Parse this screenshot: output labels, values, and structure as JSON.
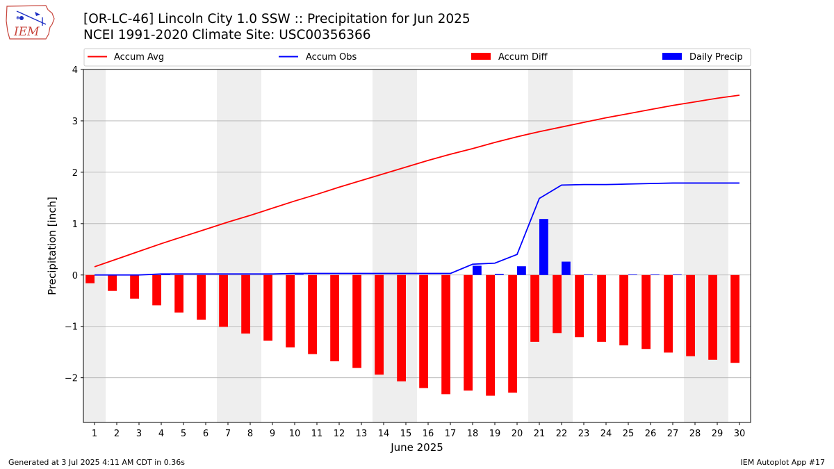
{
  "header": {
    "title_line1": "[OR-LC-46] Lincoln City 1.0 SSW :: Precipitation for Jun 2025",
    "title_line2": "NCEI 1991-2020 Climate Site: USC00356366"
  },
  "logo": {
    "text": "IEM"
  },
  "footer": {
    "left": "Generated at 3 Jul 2025 4:11 AM CDT in 0.36s",
    "right": "IEM Autoplot App #17"
  },
  "chart_data": {
    "type": "bar",
    "xlabel": "June 2025",
    "ylabel": "Precipitation [inch]",
    "ylim": [
      -2.87,
      4
    ],
    "yticks": [
      -2,
      -1,
      0,
      1,
      2,
      3,
      4
    ],
    "ytick_labels": [
      "−2",
      "−1",
      "0",
      "1",
      "2",
      "3",
      "4"
    ],
    "x": [
      1,
      2,
      3,
      4,
      5,
      6,
      7,
      8,
      9,
      10,
      11,
      12,
      13,
      14,
      15,
      16,
      17,
      18,
      19,
      20,
      21,
      22,
      23,
      24,
      25,
      26,
      27,
      28,
      29,
      30
    ],
    "grid": "horizontal",
    "weekend_shading_days": [
      1,
      7,
      8,
      14,
      15,
      21,
      22,
      28,
      29
    ],
    "legend_position": "top",
    "colors": {
      "avg": "#ff0000",
      "obs": "#0000ff",
      "diff": "#ff0000",
      "daily": "#0000ff",
      "shade": "#eeeeee",
      "grid": "#b0b0b0"
    },
    "series": [
      {
        "name": "Accum Avg",
        "kind": "line",
        "color": "#ff0000",
        "values": [
          0.16,
          0.31,
          0.46,
          0.61,
          0.75,
          0.89,
          1.03,
          1.16,
          1.3,
          1.44,
          1.57,
          1.71,
          1.84,
          1.97,
          2.1,
          2.23,
          2.35,
          2.46,
          2.58,
          2.69,
          2.79,
          2.88,
          2.97,
          3.06,
          3.14,
          3.22,
          3.3,
          3.37,
          3.44,
          3.5
        ]
      },
      {
        "name": "Accum Obs",
        "kind": "line",
        "color": "#0000ff",
        "values": [
          0.0,
          0.0,
          0.0,
          0.02,
          0.02,
          0.02,
          0.02,
          0.02,
          0.02,
          0.03,
          0.03,
          0.03,
          0.03,
          0.03,
          0.03,
          0.03,
          0.03,
          0.21,
          0.23,
          0.4,
          1.49,
          1.75,
          1.76,
          1.76,
          1.77,
          1.78,
          1.79,
          1.79,
          1.79,
          1.79
        ]
      },
      {
        "name": "Accum Diff",
        "kind": "bar",
        "color": "#ff0000",
        "values": [
          -0.16,
          -0.31,
          -0.46,
          -0.59,
          -0.73,
          -0.87,
          -1.01,
          -1.14,
          -1.28,
          -1.41,
          -1.54,
          -1.68,
          -1.81,
          -1.94,
          -2.07,
          -2.2,
          -2.32,
          -2.25,
          -2.35,
          -2.29,
          -1.3,
          -1.13,
          -1.21,
          -1.3,
          -1.37,
          -1.44,
          -1.51,
          -1.58,
          -1.65,
          -1.71
        ]
      },
      {
        "name": "Daily Precip",
        "kind": "bar",
        "color": "#0000ff",
        "values": [
          0,
          0,
          0,
          0.02,
          0,
          0,
          0,
          0,
          0,
          0.01,
          0,
          0,
          0,
          0,
          0,
          0,
          0,
          0.18,
          0.02,
          0.17,
          1.09,
          0.26,
          0.01,
          0,
          0.01,
          0.01,
          0.01,
          0,
          0,
          0
        ]
      }
    ]
  }
}
